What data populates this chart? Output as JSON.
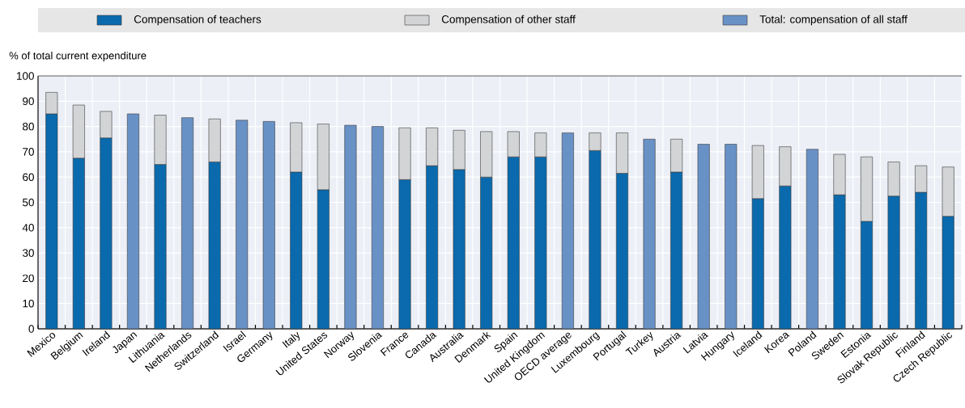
{
  "chart_data": {
    "type": "bar",
    "stacked": true,
    "ylabel": "% of total current expenditure",
    "categories": [
      "Mexico",
      "Belgium",
      "Ireland",
      "Japan",
      "Lithuania",
      "Netherlands",
      "Switzerland",
      "Israel",
      "Germany",
      "Italy",
      "United States",
      "Norway",
      "Slovenia",
      "France",
      "Canada",
      "Australia",
      "Denmark",
      "Spain",
      "United Kingdom",
      "OECD average",
      "Luxembourg",
      "Portugal",
      "Turkey",
      "Austria",
      "Latvia",
      "Hungary",
      "Iceland",
      "Korea",
      "Poland",
      "Sweden",
      "Estonia",
      "Slovak Republic",
      "Finland",
      "Czech Republic"
    ],
    "series": [
      {
        "name": "Compensation of teachers",
        "color": "#0a6aad",
        "values": [
          85,
          67.5,
          75.5,
          null,
          65,
          null,
          66,
          null,
          null,
          62,
          55,
          null,
          null,
          59,
          64.5,
          63,
          60,
          68,
          68,
          null,
          70.5,
          61.5,
          null,
          62,
          null,
          null,
          51.5,
          56.5,
          null,
          53,
          42.5,
          52.5,
          54,
          44.5
        ]
      },
      {
        "name": "Compensation of other staff",
        "color": "#d3d4d6",
        "values": [
          8.5,
          21,
          10.5,
          null,
          19.5,
          null,
          17,
          null,
          null,
          19.5,
          26,
          null,
          null,
          20.5,
          15,
          15.5,
          18,
          10,
          9.5,
          null,
          7,
          16,
          null,
          13,
          null,
          null,
          21,
          15.5,
          null,
          16,
          25.5,
          13.5,
          10.5,
          19.5
        ]
      },
      {
        "name": "Total: compensation of all staff",
        "color": "#6891c6",
        "values": [
          null,
          null,
          null,
          85,
          null,
          83.5,
          null,
          82.5,
          82,
          null,
          null,
          80.5,
          80,
          null,
          null,
          null,
          null,
          null,
          null,
          77.5,
          null,
          null,
          75,
          null,
          73,
          73,
          null,
          null,
          71,
          null,
          null,
          null,
          null,
          null
        ]
      }
    ],
    "ylim": [
      0,
      100
    ],
    "yticks": [
      0,
      10,
      20,
      30,
      40,
      50,
      60,
      70,
      80,
      90,
      100
    ],
    "grid": true,
    "legend": "top"
  }
}
